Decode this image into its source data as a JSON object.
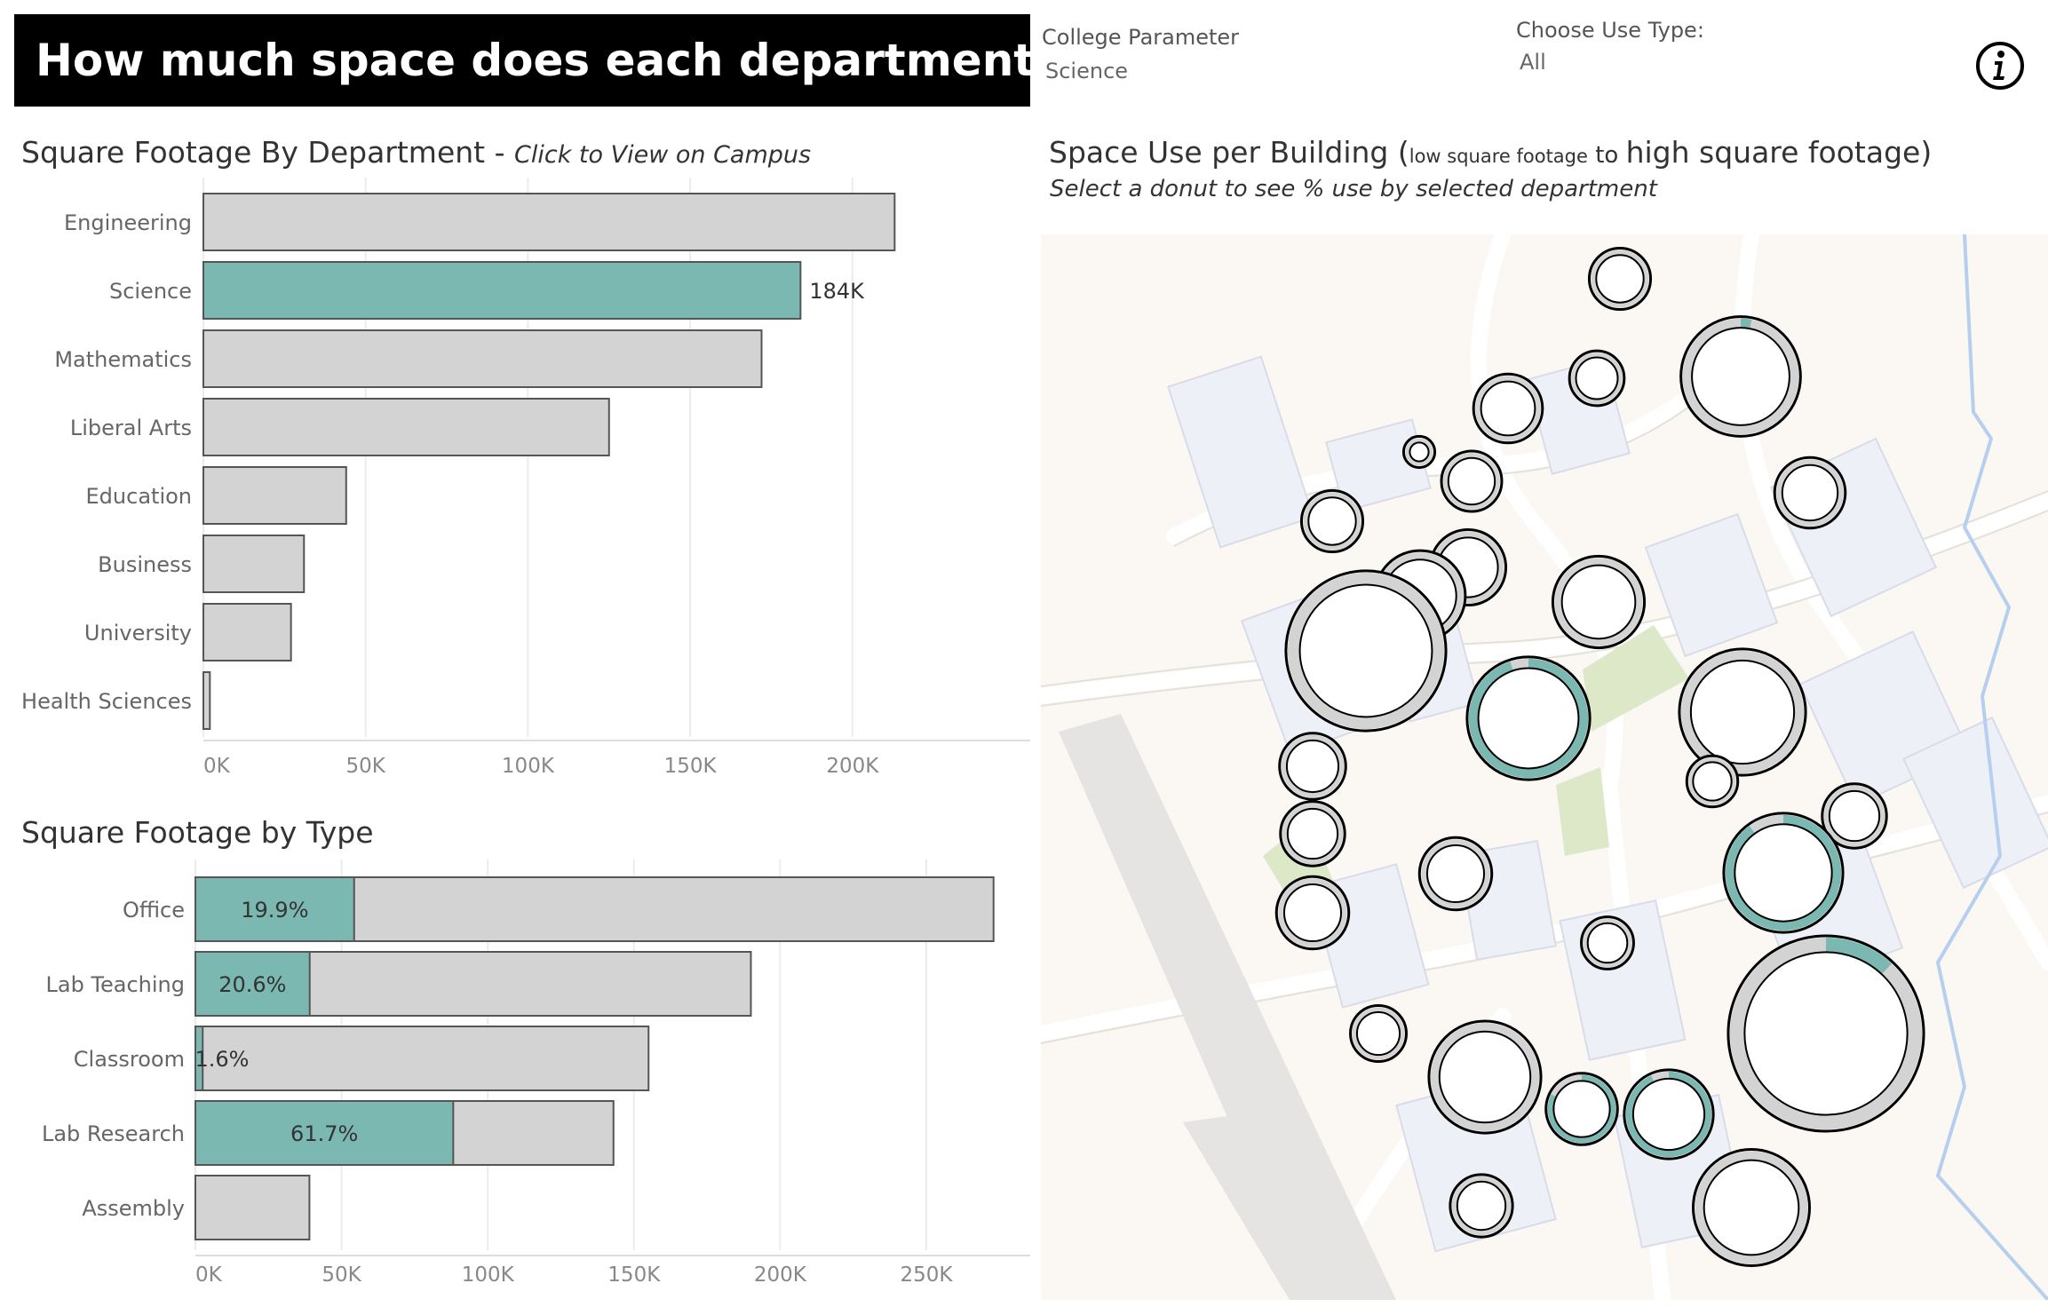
{
  "header": {
    "title": "How much space does each department use?",
    "college_param_label": "College Parameter",
    "college_param_value": "Science",
    "use_type_label": "Choose Use Type:",
    "use_type_value": "All",
    "info_icon": "info-icon"
  },
  "colors": {
    "accent": "#7ab8b1",
    "bar": "#d3d3d3",
    "outline": "#555555"
  },
  "dept_title": "Square Footage By Department - ",
  "dept_title_hint": "Click to View on Campus",
  "type_title": "Square Footage by Type",
  "map_title_a": "Space Use per Building (",
  "map_title_small1": "low square footage",
  "map_title_mid": " to ",
  "map_title_b": "high square footage)",
  "map_subtitle": "Select a donut to see % use by selected department",
  "chart_data": [
    {
      "type": "bar",
      "orientation": "horizontal",
      "title": "Square Footage By Department",
      "categories": [
        "Engineering",
        "Science",
        "Mathematics",
        "Liberal Arts",
        "Education",
        "Business",
        "University",
        "Health Sciences"
      ],
      "values": [
        213000,
        184000,
        172000,
        125000,
        44000,
        31000,
        27000,
        2000
      ],
      "highlighted": "Science",
      "data_labels": {
        "Science": "184K"
      },
      "xticks": [
        "0K",
        "50K",
        "100K",
        "150K",
        "200K"
      ],
      "xlim": [
        0,
        240000
      ],
      "grid": true
    },
    {
      "type": "bar",
      "orientation": "horizontal",
      "stacked": true,
      "title": "Square Footage by Type",
      "categories": [
        "Office",
        "Lab Teaching",
        "Classroom",
        "Lab Research",
        "Assembly"
      ],
      "totals": [
        273000,
        190000,
        155000,
        143000,
        39000
      ],
      "selected_values": [
        54300,
        39100,
        2500,
        88200,
        0
      ],
      "data_labels": [
        "19.9%",
        "20.6%",
        "1.6%",
        "61.7%",
        ""
      ],
      "xticks": [
        "0K",
        "50K",
        "100K",
        "150K",
        "200K",
        "250K"
      ],
      "xlim": [
        0,
        285000
      ],
      "grid": true
    },
    {
      "type": "donut-map",
      "title": "Space Use per Building",
      "buildings": [
        {
          "size": 23000,
          "share": 0.0
        },
        {
          "size": 17000,
          "share": 0.0
        },
        {
          "size": 31000,
          "share": 0.0
        },
        {
          "size": 22000,
          "share": 0.0
        },
        {
          "size": 3000,
          "share": 0.0
        },
        {
          "size": 115000,
          "share": 0.03
        },
        {
          "size": 39000,
          "share": 0.0
        },
        {
          "size": 60000,
          "share": 0.0
        },
        {
          "size": 23000,
          "share": 0.0
        },
        {
          "size": 62000,
          "share": 0.0
        },
        {
          "size": 33000,
          "share": 0.0
        },
        {
          "size": 220000,
          "share": 0.0
        },
        {
          "size": 122000,
          "share": 0.95
        },
        {
          "size": 130000,
          "share": 0.0
        },
        {
          "size": 28000,
          "share": 0.0
        },
        {
          "size": 26000,
          "share": 0.0
        },
        {
          "size": 14000,
          "share": 0.0
        },
        {
          "size": 26000,
          "share": 0.0
        },
        {
          "size": 35000,
          "share": 0.0
        },
        {
          "size": 114000,
          "share": 0.9
        },
        {
          "size": 35000,
          "share": 0.0
        },
        {
          "size": 15000,
          "share": 0.0
        },
        {
          "size": 340000,
          "share": 0.12
        },
        {
          "size": 18000,
          "share": 0.0
        },
        {
          "size": 99000,
          "share": 0.0
        },
        {
          "size": 34000,
          "share": 0.82
        },
        {
          "size": 58000,
          "share": 0.93
        },
        {
          "size": 24000,
          "share": 0.0
        },
        {
          "size": 108000,
          "share": 0.0
        }
      ]
    }
  ]
}
